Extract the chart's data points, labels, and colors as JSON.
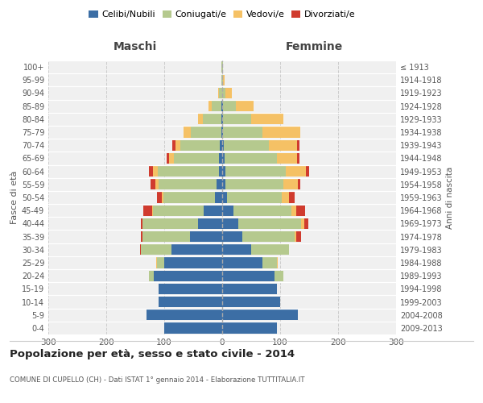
{
  "age_groups": [
    "0-4",
    "5-9",
    "10-14",
    "15-19",
    "20-24",
    "25-29",
    "30-34",
    "35-39",
    "40-44",
    "45-49",
    "50-54",
    "55-59",
    "60-64",
    "65-69",
    "70-74",
    "75-79",
    "80-84",
    "85-89",
    "90-94",
    "95-99",
    "100+"
  ],
  "birth_years": [
    "2009-2013",
    "2004-2008",
    "1999-2003",
    "1994-1998",
    "1989-1993",
    "1984-1988",
    "1979-1983",
    "1974-1978",
    "1969-1973",
    "1964-1968",
    "1959-1963",
    "1954-1958",
    "1949-1953",
    "1944-1948",
    "1939-1943",
    "1934-1938",
    "1929-1933",
    "1924-1928",
    "1919-1923",
    "1914-1918",
    "≤ 1913"
  ],
  "maschi_celibi": [
    100,
    130,
    110,
    110,
    118,
    100,
    88,
    55,
    42,
    32,
    12,
    10,
    6,
    5,
    4,
    2,
    2,
    2,
    0,
    0,
    0
  ],
  "maschi_coniugati": [
    0,
    0,
    0,
    0,
    8,
    12,
    52,
    82,
    95,
    88,
    90,
    100,
    105,
    78,
    68,
    52,
    32,
    16,
    5,
    2,
    1
  ],
  "maschi_vedovi": [
    0,
    0,
    0,
    0,
    0,
    2,
    0,
    1,
    1,
    1,
    2,
    5,
    8,
    8,
    8,
    12,
    8,
    5,
    2,
    0,
    0
  ],
  "maschi_divorziati": [
    0,
    0,
    0,
    0,
    0,
    0,
    2,
    2,
    2,
    15,
    8,
    8,
    7,
    5,
    6,
    0,
    0,
    0,
    0,
    0,
    0
  ],
  "femmine_nubili": [
    95,
    130,
    100,
    95,
    90,
    70,
    50,
    35,
    28,
    20,
    8,
    5,
    5,
    4,
    3,
    2,
    2,
    2,
    0,
    0,
    0
  ],
  "femmine_coniugate": [
    0,
    0,
    0,
    0,
    15,
    25,
    65,
    90,
    108,
    100,
    95,
    100,
    105,
    90,
    78,
    68,
    48,
    22,
    5,
    2,
    2
  ],
  "femmine_vedove": [
    0,
    0,
    0,
    0,
    0,
    1,
    0,
    3,
    5,
    8,
    12,
    25,
    35,
    35,
    48,
    65,
    55,
    30,
    12,
    2,
    0
  ],
  "femmine_divorziate": [
    0,
    0,
    0,
    0,
    0,
    0,
    0,
    8,
    8,
    15,
    10,
    5,
    5,
    5,
    5,
    0,
    0,
    0,
    0,
    0,
    0
  ],
  "colors": {
    "celibi": "#3c6ea5",
    "coniugati": "#b5c98e",
    "vedovi": "#f5c165",
    "divorziati": "#d03b2e"
  },
  "xlim": 300,
  "title": "Popolazione per età, sesso e stato civile - 2014",
  "subtitle": "COMUNE DI CUPELLO (CH) - Dati ISTAT 1° gennaio 2014 - Elaborazione TUTTITALIA.IT",
  "xlabel_left": "Maschi",
  "xlabel_right": "Femmine",
  "ylabel": "Fasce di età",
  "ylabel_right": "Anni di nascita",
  "bg_color": "#f0f0f0",
  "grid_color": "#cccccc"
}
